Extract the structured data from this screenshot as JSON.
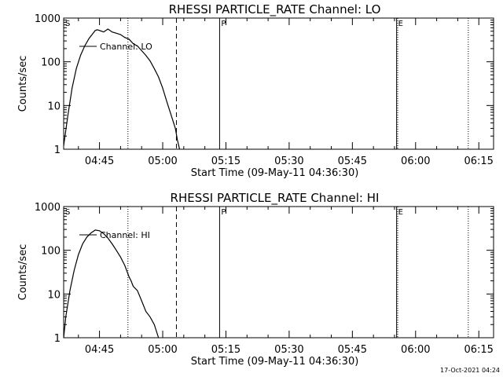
{
  "footer": {
    "timestamp": "17-Oct-2021 04:24"
  },
  "chart_data": [
    {
      "type": "line",
      "title": "RHESSI PARTICLE_RATE Channel: LO",
      "xlabel": "Start Time (09-May-11 04:36:30)",
      "ylabel": "Counts/sec",
      "yscale": "log",
      "xlim": [
        "04:36:30",
        "06:18:30"
      ],
      "ylim": [
        1,
        1000
      ],
      "xticks": [
        "04:45",
        "05:00",
        "05:15",
        "05:30",
        "05:45",
        "06:00",
        "06:15"
      ],
      "yticks": [
        "1",
        "10",
        "100",
        "1000"
      ],
      "legend_entry": "Channel: LO",
      "markers": [
        {
          "label": "S",
          "time": "04:36:30",
          "style": "solid"
        },
        {
          "label": "",
          "time": "04:51:45",
          "style": "dotted"
        },
        {
          "label": "",
          "time": "05:03:15",
          "style": "dashed"
        },
        {
          "label": "P",
          "time": "05:13:30",
          "style": "solid"
        },
        {
          "label": "E",
          "time": "05:55:30",
          "style": "solid"
        },
        {
          "label": "",
          "time": "05:55:45",
          "style": "dotted"
        },
        {
          "label": "",
          "time": "06:12:30",
          "style": "dotted"
        }
      ],
      "series": [
        {
          "x": [
            "04:36:30",
            "04:37:30",
            "04:38:30",
            "04:39:30",
            "04:40:30",
            "04:41:30",
            "04:42:30",
            "04:43:30",
            "04:44:00",
            "04:44:30",
            "04:45:00",
            "04:46:00",
            "04:47:00",
            "04:48:00",
            "04:49:00",
            "04:50:00",
            "04:51:00",
            "04:52:00",
            "04:53:00",
            "04:54:00",
            "04:55:00",
            "04:56:00",
            "04:57:00",
            "04:58:00",
            "04:59:00",
            "05:00:00",
            "05:01:00",
            "05:02:00",
            "05:03:00",
            "05:03:30",
            "05:04:00"
          ],
          "y": [
            1.2,
            6,
            25,
            70,
            140,
            230,
            340,
            450,
            520,
            540,
            520,
            480,
            560,
            480,
            450,
            420,
            360,
            330,
            260,
            230,
            180,
            140,
            105,
            70,
            45,
            25,
            12,
            6,
            3,
            1.6,
            1
          ]
        }
      ]
    },
    {
      "type": "line",
      "title": "RHESSI PARTICLE_RATE Channel: HI",
      "xlabel": "Start Time (09-May-11 04:36:30)",
      "ylabel": "Counts/sec",
      "yscale": "log",
      "xlim": [
        "04:36:30",
        "06:18:30"
      ],
      "ylim": [
        1,
        1000
      ],
      "xticks": [
        "04:45",
        "05:00",
        "05:15",
        "05:30",
        "05:45",
        "06:00",
        "06:15"
      ],
      "yticks": [
        "1",
        "10",
        "100",
        "1000"
      ],
      "legend_entry": "Channel: HI",
      "markers": [
        {
          "label": "S",
          "time": "04:36:30",
          "style": "solid"
        },
        {
          "label": "",
          "time": "04:51:45",
          "style": "dotted"
        },
        {
          "label": "",
          "time": "05:03:15",
          "style": "dashed"
        },
        {
          "label": "P",
          "time": "05:13:30",
          "style": "solid"
        },
        {
          "label": "E",
          "time": "05:55:30",
          "style": "solid"
        },
        {
          "label": "",
          "time": "05:55:45",
          "style": "dotted"
        },
        {
          "label": "",
          "time": "06:12:30",
          "style": "dotted"
        }
      ],
      "series": [
        {
          "x": [
            "04:36:30",
            "04:37:00",
            "04:38:00",
            "04:39:00",
            "04:40:00",
            "04:41:00",
            "04:42:00",
            "04:43:00",
            "04:44:00",
            "04:45:00",
            "04:46:00",
            "04:47:00",
            "04:48:00",
            "04:49:00",
            "04:50:00",
            "04:51:00",
            "04:52:00",
            "04:52:30",
            "04:53:00",
            "04:54:00",
            "04:55:00",
            "04:56:00",
            "04:57:00",
            "04:58:00",
            "04:59:00"
          ],
          "y": [
            1,
            3,
            12,
            35,
            80,
            140,
            200,
            250,
            290,
            280,
            240,
            190,
            140,
            100,
            70,
            45,
            25,
            20,
            15,
            12,
            7,
            4,
            3,
            2,
            1
          ]
        }
      ]
    }
  ]
}
